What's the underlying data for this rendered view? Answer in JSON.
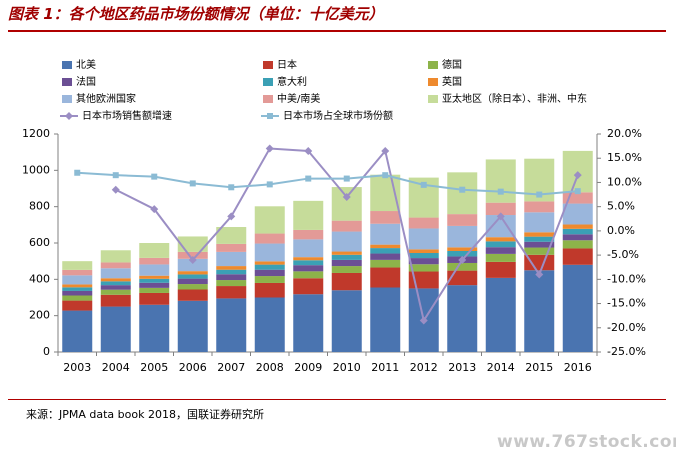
{
  "title": "图表 1：各个地区药品市场份额情况（单位：十亿美元）",
  "source": "来源：JPMA data book 2018，国联证券研究所",
  "watermark": "www.767stock.com",
  "chart_data": {
    "type": "bar",
    "stacked": true,
    "categories": [
      "2003",
      "2004",
      "2005",
      "2006",
      "2007",
      "2008",
      "2009",
      "2010",
      "2011",
      "2012",
      "2013",
      "2014",
      "2015",
      "2016"
    ],
    "ylim": [
      0,
      1200
    ],
    "yticks": [
      "0",
      "200",
      "400",
      "600",
      "800",
      "1000",
      "1200"
    ],
    "y2lim": [
      -25,
      20
    ],
    "y2ticks": [
      "-25.0%",
      "-20.0%",
      "-15.0%",
      "-10.0%",
      "-5.0%",
      "0.0%",
      "5.0%",
      "10.0%",
      "15.0%",
      "20.0%"
    ],
    "legend_position": "top",
    "grid": false,
    "series": [
      {
        "name": "北美",
        "color": "#4a74b0",
        "values": [
          228,
          250,
          260,
          282,
          295,
          300,
          318,
          340,
          355,
          350,
          368,
          408,
          450,
          480
        ]
      },
      {
        "name": "日本",
        "color": "#c0392b",
        "values": [
          55,
          65,
          65,
          62,
          68,
          80,
          88,
          95,
          110,
          93,
          80,
          88,
          85,
          90
        ]
      },
      {
        "name": "德国",
        "color": "#8db34a",
        "values": [
          28,
          28,
          28,
          30,
          33,
          38,
          38,
          38,
          42,
          40,
          42,
          44,
          40,
          45
        ]
      },
      {
        "name": "法国",
        "color": "#6b4f94",
        "values": [
          25,
          25,
          28,
          30,
          32,
          35,
          34,
          34,
          35,
          34,
          36,
          37,
          32,
          33
        ]
      },
      {
        "name": "意大利",
        "color": "#3ba0b5",
        "values": [
          20,
          21,
          22,
          23,
          25,
          28,
          27,
          28,
          30,
          28,
          30,
          32,
          28,
          30
        ]
      },
      {
        "name": "英国",
        "color": "#ee8a2e",
        "values": [
          16,
          17,
          17,
          18,
          20,
          18,
          17,
          18,
          19,
          20,
          20,
          23,
          24,
          24
        ]
      },
      {
        "name": "其他欧洲国家",
        "color": "#9ab6dc",
        "values": [
          50,
          55,
          62,
          68,
          78,
          98,
          98,
          110,
          115,
          115,
          118,
          122,
          110,
          115
        ]
      },
      {
        "name": "中美/南美",
        "color": "#e39a97",
        "values": [
          30,
          32,
          36,
          38,
          44,
          55,
          52,
          60,
          70,
          60,
          65,
          68,
          60,
          62
        ]
      },
      {
        "name": "亚太地区（除日本）、非洲、中东",
        "color": "#c6dc9a",
        "values": [
          48,
          67,
          82,
          85,
          93,
          150,
          160,
          185,
          200,
          220,
          230,
          238,
          235,
          228
        ]
      }
    ],
    "lines": [
      {
        "name": "日本市场销售额增速",
        "axis": "right",
        "color": "#9b8ec4",
        "marker": "diamond",
        "values": [
          null,
          8.5,
          4.5,
          -6.0,
          3.0,
          17.0,
          16.5,
          7.0,
          16.5,
          -18.5,
          -6.0,
          3.0,
          -9.0,
          11.5
        ]
      },
      {
        "name": "日本市场占全球市场份额",
        "axis": "right",
        "color": "#8bbbd4",
        "marker": "square",
        "values": [
          12.0,
          11.5,
          11.2,
          9.8,
          9.0,
          9.6,
          10.8,
          10.8,
          11.5,
          9.5,
          8.5,
          8.1,
          7.5,
          8.2
        ]
      }
    ]
  }
}
